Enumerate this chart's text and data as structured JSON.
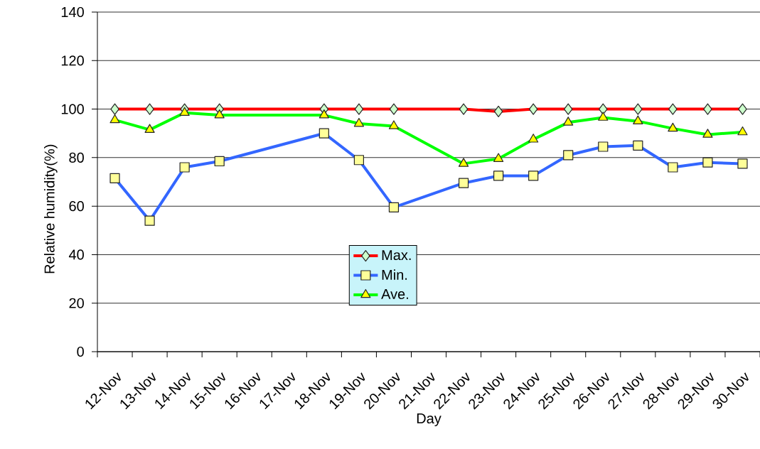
{
  "chart_data": {
    "type": "line",
    "xlabel": "Day",
    "ylabel": "Relative humidity(%)",
    "categories": [
      "12-Nov",
      "13-Nov",
      "14-Nov",
      "15-Nov",
      "16-Nov",
      "17-Nov",
      "18-Nov",
      "19-Nov",
      "20-Nov",
      "21-Nov",
      "22-Nov",
      "23-Nov",
      "24-Nov",
      "25-Nov",
      "26-Nov",
      "27-Nov",
      "28-Nov",
      "29-Nov",
      "30-Nov"
    ],
    "series": [
      {
        "name": "Max.",
        "color": "#ff0000",
        "marker": "diamond",
        "values": [
          100,
          100,
          100,
          100,
          null,
          null,
          100,
          100,
          100,
          null,
          100,
          99,
          100,
          100,
          100,
          100,
          100,
          100,
          100
        ]
      },
      {
        "name": "Min.",
        "color": "#3366ff",
        "marker": "square",
        "values": [
          71.5,
          54,
          76,
          78.5,
          null,
          null,
          90,
          79,
          59.5,
          null,
          69.5,
          72.5,
          72.5,
          81,
          84.5,
          85,
          76,
          78,
          77.5
        ]
      },
      {
        "name": "Ave.",
        "color": "#00ff00",
        "marker": "triangle",
        "values": [
          95.5,
          91.5,
          98.5,
          97.5,
          null,
          null,
          97.5,
          94,
          93,
          null,
          77.5,
          79.5,
          87.5,
          94.5,
          96.5,
          95,
          92,
          89.5,
          90.5
        ]
      }
    ],
    "ylim": [
      0,
      140
    ],
    "yticks": [
      0,
      20,
      40,
      60,
      80,
      100,
      120,
      140
    ],
    "grid": "y",
    "legend": "bottom",
    "line_style": "solid"
  }
}
